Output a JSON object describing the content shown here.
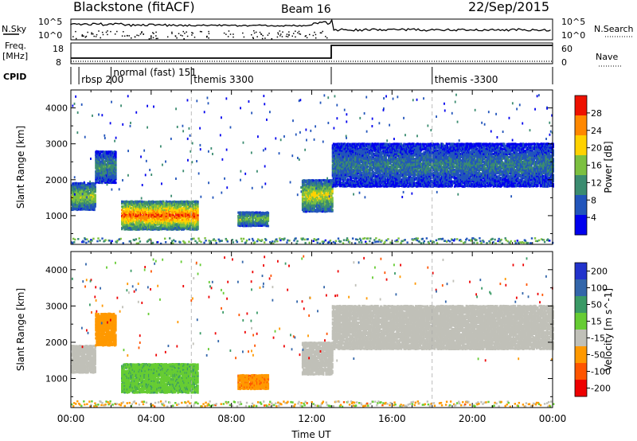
{
  "header": {
    "station": "Blackstone (fitACF)",
    "beam": "Beam 16",
    "date": "22/Sep/2015"
  },
  "status_panel": {
    "nsky_label": "N.Sky",
    "nsky_ticks": [
      "10^5",
      "10^0"
    ],
    "nsearch_label": "N.Search",
    "nsearch_ticks": [
      "10^5",
      "10^0"
    ],
    "freq_label_1": "Freq.",
    "freq_label_2": "[MHz]",
    "freq_ticks": [
      "18",
      "8"
    ],
    "nave_label": "Nave",
    "nave_ticks": [
      "60",
      "0"
    ],
    "cpid_label": "CPID",
    "cpid_entries": [
      {
        "text": "rbsp 200",
        "hour": 0.4
      },
      {
        "text": "normal (fast) 151",
        "hour": 2.0
      },
      {
        "text": "themis 3300",
        "hour": 6.0
      },
      {
        "text": "themis -3300",
        "hour": 18.0
      }
    ]
  },
  "chart_data": [
    {
      "type": "heatmap",
      "title": "",
      "xlabel": "Time UT",
      "ylabel": "Slant Range [km]",
      "xlim": [
        0,
        24
      ],
      "ylim": [
        200,
        4500
      ],
      "x_ticks": [
        "00:00",
        "04:00",
        "08:00",
        "12:00",
        "16:00",
        "20:00",
        "00:00"
      ],
      "y_ticks": [
        1000,
        2000,
        3000,
        4000
      ],
      "colorbar": {
        "label": "Power [dB]",
        "ticks": [
          4,
          8,
          12,
          16,
          20,
          24,
          28
        ],
        "range": [
          0,
          32
        ],
        "colors": [
          "#0000ee",
          "#2255bb",
          "#3b8c70",
          "#7cc040",
          "#ffd200",
          "#ff8800",
          "#ee1100"
        ]
      },
      "regions": [
        {
          "t": [
            0.0,
            1.2
          ],
          "r": [
            1150,
            1900
          ],
          "power": 18
        },
        {
          "t": [
            1.2,
            2.2
          ],
          "r": [
            1900,
            2800
          ],
          "power": 12
        },
        {
          "t": [
            2.5,
            6.3
          ],
          "r": [
            600,
            1400
          ],
          "power": 28
        },
        {
          "t": [
            8.3,
            9.8
          ],
          "r": [
            700,
            1100
          ],
          "power": 16
        },
        {
          "t": [
            11.5,
            13.0
          ],
          "r": [
            1100,
            2000
          ],
          "power": 20
        },
        {
          "t": [
            13.0,
            24.0
          ],
          "r": [
            1800,
            3000
          ],
          "power": 10
        }
      ]
    },
    {
      "type": "heatmap",
      "title": "",
      "xlabel": "Time UT",
      "ylabel": "Slant Range [km]",
      "xlim": [
        0,
        24
      ],
      "ylim": [
        200,
        4500
      ],
      "x_ticks": [
        "00:00",
        "04:00",
        "08:00",
        "12:00",
        "16:00",
        "20:00",
        "00:00"
      ],
      "y_ticks": [
        1000,
        2000,
        3000,
        4000
      ],
      "colorbar": {
        "label": "Velocity [m s^-1]",
        "ticks": [
          200,
          100,
          50,
          15,
          -15,
          -50,
          -100,
          -200
        ],
        "colors": [
          "#2233cc",
          "#3366aa",
          "#3a9a66",
          "#66cc33",
          "#c0c0b8",
          "#ff9900",
          "#ff5500",
          "#ee0000"
        ]
      },
      "regions": [
        {
          "t": [
            0.0,
            1.2
          ],
          "r": [
            1150,
            1900
          ],
          "velocity": 0
        },
        {
          "t": [
            1.2,
            2.2
          ],
          "r": [
            1900,
            2800
          ],
          "velocity": -30
        },
        {
          "t": [
            2.5,
            6.3
          ],
          "r": [
            600,
            1400
          ],
          "velocity": 40
        },
        {
          "t": [
            8.3,
            9.8
          ],
          "r": [
            700,
            1100
          ],
          "velocity": -40
        },
        {
          "t": [
            11.5,
            13.0
          ],
          "r": [
            1100,
            2000
          ],
          "velocity": 0
        },
        {
          "t": [
            13.0,
            24.0
          ],
          "r": [
            1800,
            3000
          ],
          "velocity": 0
        }
      ]
    }
  ]
}
